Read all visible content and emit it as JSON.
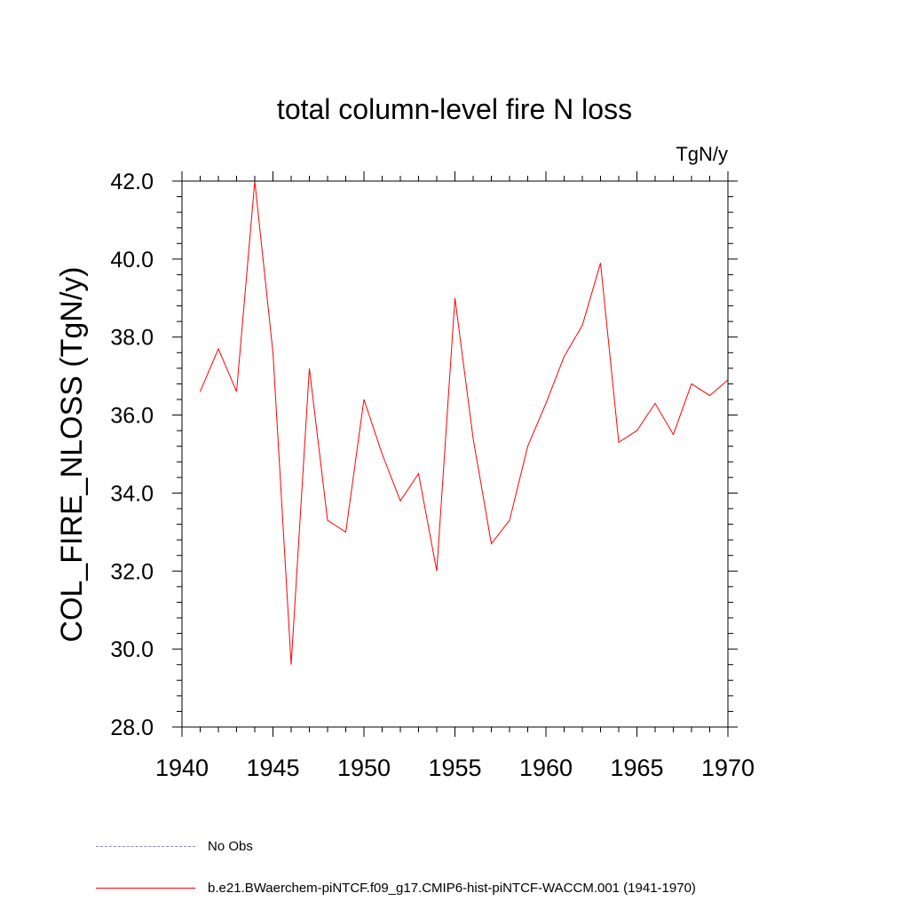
{
  "chart_data": {
    "type": "line",
    "title": "total column-level fire N loss",
    "units_label": "TgN/y",
    "ylabel": "COL_FIRE_NLOSS  (TgN/y)",
    "xlabel": "",
    "xlim": [
      1940,
      1970
    ],
    "ylim": [
      28.0,
      42.0
    ],
    "xticks": [
      1940,
      1945,
      1950,
      1955,
      1960,
      1965,
      1970
    ],
    "xtick_labels": [
      "1940",
      "1945",
      "1950",
      "1955",
      "1960",
      "1965",
      "1970"
    ],
    "yticks": [
      28.0,
      30.0,
      32.0,
      34.0,
      36.0,
      38.0,
      40.0,
      42.0
    ],
    "ytick_labels": [
      "28.0",
      "30.0",
      "32.0",
      "34.0",
      "36.0",
      "38.0",
      "40.0",
      "42.0"
    ],
    "grid": false,
    "legend_position": "bottom-left, below plot",
    "series": [
      {
        "name": "b.e21.BWaerchem-piNTCF.f09_g17.CMIP6-hist-piNTCF-WACCM.001 (1941-1970)",
        "color": "#ff0000",
        "style": "solid",
        "x": [
          1941,
          1942,
          1943,
          1944,
          1945,
          1946,
          1947,
          1948,
          1949,
          1950,
          1951,
          1952,
          1953,
          1954,
          1955,
          1956,
          1957,
          1958,
          1959,
          1960,
          1961,
          1962,
          1963,
          1964,
          1965,
          1966,
          1967,
          1968,
          1969,
          1970
        ],
        "values": [
          36.6,
          37.7,
          36.6,
          42.0,
          37.6,
          29.6,
          37.2,
          33.3,
          33.0,
          36.4,
          35.0,
          33.8,
          34.5,
          32.0,
          39.0,
          35.4,
          32.7,
          33.3,
          35.2,
          36.3,
          37.5,
          38.3,
          39.9,
          35.3,
          35.6,
          36.3,
          35.5,
          36.8,
          36.5,
          36.9
        ]
      }
    ],
    "legend": [
      {
        "label": "No Obs",
        "color": "#8c82c8",
        "style": "dashed"
      },
      {
        "label": "b.e21.BWaerchem-piNTCF.f09_g17.CMIP6-hist-piNTCF-WACCM.001 (1941-1970)",
        "color": "#ff0000",
        "style": "solid"
      }
    ]
  }
}
